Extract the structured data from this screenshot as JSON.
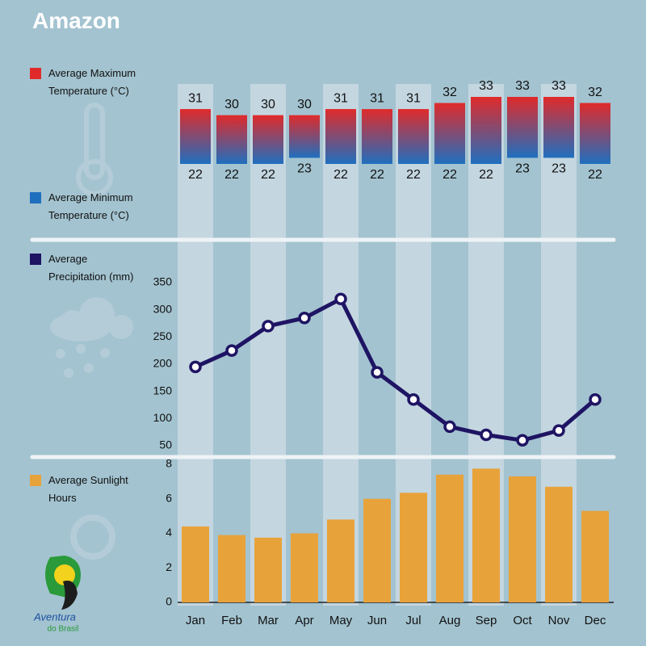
{
  "header": {
    "title": "Amazon"
  },
  "logo": {
    "line1": "Aventura",
    "line2": "do Brasil"
  },
  "chart_data": [
    {
      "type": "range-bar",
      "series": [
        {
          "name": "Average Maximum Temperature (°C)",
          "color": "#e02a2a",
          "values": [
            31,
            30,
            30,
            30,
            31,
            31,
            31,
            32,
            33,
            33,
            33,
            32
          ]
        },
        {
          "name": "Average Minimum Temperature (°C)",
          "color": "#1f6fbf",
          "values": [
            22,
            22,
            22,
            23,
            22,
            22,
            22,
            22,
            22,
            23,
            23,
            22
          ]
        }
      ]
    },
    {
      "type": "line",
      "series": [
        {
          "name": "Average Precipitation (mm)",
          "color": "#1e1463",
          "values": [
            195,
            225,
            270,
            285,
            320,
            185,
            135,
            85,
            70,
            60,
            78,
            135
          ]
        }
      ],
      "ylim": [
        50,
        350
      ],
      "yticks": [
        50,
        100,
        150,
        200,
        250,
        300,
        350
      ]
    },
    {
      "type": "bar",
      "categories": [
        "Jan",
        "Feb",
        "Mar",
        "Apr",
        "May",
        "Jun",
        "Jul",
        "Aug",
        "Sep",
        "Oct",
        "Nov",
        "Dec"
      ],
      "series": [
        {
          "name": "Average Sunlight Hours",
          "color": "#e8a23a",
          "values": [
            4.4,
            3.9,
            3.75,
            4.0,
            4.8,
            6.0,
            6.35,
            7.4,
            7.75,
            7.3,
            6.7,
            5.3
          ]
        }
      ],
      "ylim": [
        0,
        8
      ],
      "yticks": [
        0,
        2,
        4,
        6,
        8
      ]
    }
  ]
}
